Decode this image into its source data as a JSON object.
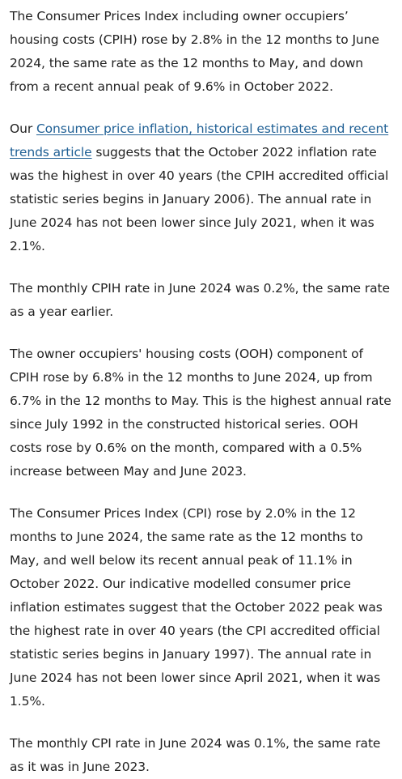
{
  "paragraphs": {
    "p1": "The Consumer Prices Index including owner occupiers’ housing costs (CPIH) rose by 2.8% in the 12 months to June 2024, the same rate as the 12 months to May, and down from a recent annual peak of 9.6% in October 2022.",
    "p2_prefix": "Our ",
    "p2_link": "Consumer price inflation, historical estimates and recent trends article",
    "p2_suffix": " suggests that the October 2022 inflation rate was the highest in over 40 years (the CPIH accredited official statistic series begins in January 2006). The annual rate in June 2024 has not been lower since July 2021, when it was 2.1%.",
    "p3": "The monthly CPIH rate in June 2024 was 0.2%, the same rate as a year earlier.",
    "p4": "The owner occupiers' housing costs (OOH) component of CPIH rose by 6.8% in the 12 months to June 2024, up from 6.7% in the 12 months to May. This is the highest annual rate since July 1992 in the constructed historical series. OOH costs rose by 0.6% on the month, compared with a 0.5% increase between May and June 2023.",
    "p5": "The Consumer Prices Index (CPI) rose by 2.0% in the 12 months to June 2024, the same rate as the 12 months to May, and well below its recent annual peak of 11.1% in October 2022. Our indicative modelled consumer price inflation estimates suggest that the October 2022 peak was the highest rate in over 40 years (the CPI accredited official statistic series begins in January 1997). The annual rate in June 2024 has not been lower since April 2021, when it was 1.5%.",
    "p6": "The monthly CPI rate in June 2024 was 0.1%, the same rate as it was in June 2023."
  },
  "colors": {
    "text": "#222222",
    "link": "#206095",
    "background": "#ffffff"
  }
}
